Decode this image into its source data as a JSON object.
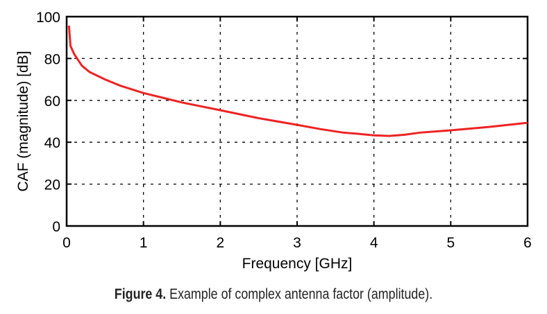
{
  "chart_data": {
    "type": "line",
    "title": "",
    "xlabel": "Frequency [GHz]",
    "ylabel": "CAF (magnitude) [dB]",
    "xlim": [
      0,
      6
    ],
    "ylim": [
      0,
      100
    ],
    "xticks": [
      0,
      1,
      2,
      3,
      4,
      5,
      6
    ],
    "yticks": [
      0,
      20,
      40,
      60,
      80,
      100
    ],
    "grid": true,
    "series": [
      {
        "name": "CAF",
        "color": "#ee2222",
        "x": [
          0.03,
          0.05,
          0.1,
          0.2,
          0.3,
          0.5,
          0.7,
          1.0,
          1.5,
          2.0,
          2.5,
          3.0,
          3.3,
          3.6,
          3.8,
          4.0,
          4.2,
          4.4,
          4.6,
          5.0,
          5.5,
          6.0
        ],
        "y": [
          95.7,
          86,
          82,
          76.5,
          73.5,
          70,
          67,
          63.5,
          59,
          55.3,
          51.5,
          48.3,
          46.3,
          44.6,
          44,
          43.3,
          43,
          43.6,
          44.6,
          45.7,
          47.3,
          49.3
        ]
      }
    ]
  },
  "caption": {
    "label": "Figure 4.",
    "text": " Example of complex antenna factor (amplitude)."
  }
}
